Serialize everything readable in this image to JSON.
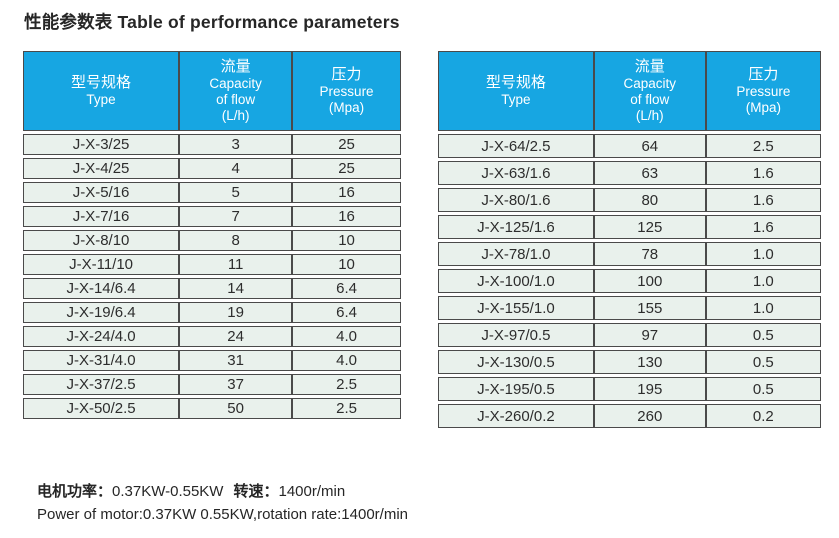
{
  "title": "性能参数表 Table of performance parameters",
  "tables": {
    "headers": {
      "type_cn": "型号规格",
      "type_en": "Type",
      "flow_cn": "流量",
      "flow_en1": "Capacity",
      "flow_en2": "of flow",
      "flow_unit": "(L/h)",
      "pressure_cn": "压力",
      "pressure_en": "Pressure",
      "pressure_unit": "(Mpa)"
    },
    "left_rows": [
      {
        "type": "J-X-3/25",
        "flow": "3",
        "pressure": "25"
      },
      {
        "type": "J-X-4/25",
        "flow": "4",
        "pressure": "25"
      },
      {
        "type": "J-X-5/16",
        "flow": "5",
        "pressure": "16"
      },
      {
        "type": "J-X-7/16",
        "flow": "7",
        "pressure": "16"
      },
      {
        "type": "J-X-8/10",
        "flow": "8",
        "pressure": "10"
      },
      {
        "type": "J-X-11/10",
        "flow": "11",
        "pressure": "10"
      },
      {
        "type": "J-X-14/6.4",
        "flow": "14",
        "pressure": "6.4"
      },
      {
        "type": "J-X-19/6.4",
        "flow": "19",
        "pressure": "6.4"
      },
      {
        "type": "J-X-24/4.0",
        "flow": "24",
        "pressure": "4.0"
      },
      {
        "type": "J-X-31/4.0",
        "flow": "31",
        "pressure": "4.0"
      },
      {
        "type": "J-X-37/2.5",
        "flow": "37",
        "pressure": "2.5"
      },
      {
        "type": "J-X-50/2.5",
        "flow": "50",
        "pressure": "2.5"
      }
    ],
    "right_rows": [
      {
        "type": "J-X-64/2.5",
        "flow": "64",
        "pressure": "2.5"
      },
      {
        "type": "J-X-63/1.6",
        "flow": "63",
        "pressure": "1.6"
      },
      {
        "type": "J-X-80/1.6",
        "flow": "80",
        "pressure": "1.6"
      },
      {
        "type": "J-X-125/1.6",
        "flow": "125",
        "pressure": "1.6"
      },
      {
        "type": "J-X-78/1.0",
        "flow": "78",
        "pressure": "1.0"
      },
      {
        "type": "J-X-100/1.0",
        "flow": "100",
        "pressure": "1.0"
      },
      {
        "type": "J-X-155/1.0",
        "flow": "155",
        "pressure": "1.0"
      },
      {
        "type": "J-X-97/0.5",
        "flow": "97",
        "pressure": "0.5"
      },
      {
        "type": "J-X-130/0.5",
        "flow": "130",
        "pressure": "0.5"
      },
      {
        "type": "J-X-195/0.5",
        "flow": "195",
        "pressure": "0.5"
      },
      {
        "type": "J-X-260/0.2",
        "flow": "260",
        "pressure": "0.2"
      }
    ]
  },
  "footer": {
    "motor_power_label": "电机功率：",
    "motor_power_value": "0.37KW-0.55KW",
    "rotation_label": "转速：",
    "rotation_value": "1400r/min",
    "english_line": "Power of motor:0.37KW 0.55KW,rotation rate:1400r/min"
  },
  "colors": {
    "header_bg": "#17a6e2",
    "row_bg": "#e9f1ec",
    "border_col": "#4a4a4a",
    "text_col": "#2d2d2d"
  }
}
